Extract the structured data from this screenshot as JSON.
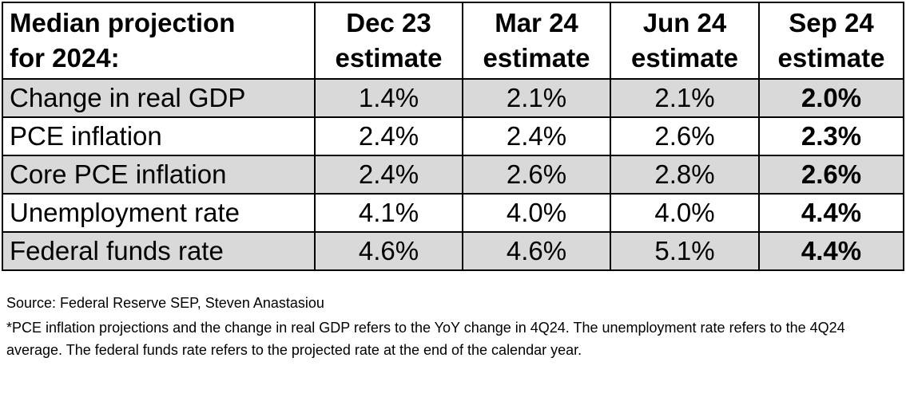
{
  "chart_data": {
    "type": "table",
    "title": "",
    "columns": [
      "Median projection for 2024:",
      "Dec 23 estimate",
      "Mar 24 estimate",
      "Jun 24 estimate",
      "Sep 24 estimate"
    ],
    "header": {
      "row_label": [
        "Median projection",
        "for 2024:"
      ],
      "cols": [
        [
          "Dec 23",
          "estimate"
        ],
        [
          "Mar 24",
          "estimate"
        ],
        [
          "Jun 24",
          "estimate"
        ],
        [
          "Sep 24",
          "estimate"
        ]
      ]
    },
    "rows": [
      {
        "label": "Change in real GDP",
        "values": [
          "1.4%",
          "2.1%",
          "2.1%",
          "2.0%"
        ],
        "shaded": true
      },
      {
        "label": "PCE inflation",
        "values": [
          "2.4%",
          "2.4%",
          "2.6%",
          "2.3%"
        ],
        "shaded": false
      },
      {
        "label": "Core PCE inflation",
        "values": [
          "2.4%",
          "2.6%",
          "2.8%",
          "2.6%"
        ],
        "shaded": true
      },
      {
        "label": "Unemployment rate",
        "values": [
          "4.1%",
          "4.0%",
          "4.0%",
          "4.4%"
        ],
        "shaded": false
      },
      {
        "label": "Federal funds rate",
        "values": [
          "4.6%",
          "4.6%",
          "5.1%",
          "4.4%"
        ],
        "shaded": true
      }
    ],
    "bold_last_column": true,
    "shade_color": "#d9d9d9"
  },
  "notes": {
    "source": "Source: Federal Reserve SEP, Steven Anastasiou",
    "footnote": "*PCE inflation projections and the change in real GDP refers to the YoY change in 4Q24. The unemployment rate refers to the 4Q24 average. The federal funds rate refers to the projected rate at the end of the calendar year."
  }
}
